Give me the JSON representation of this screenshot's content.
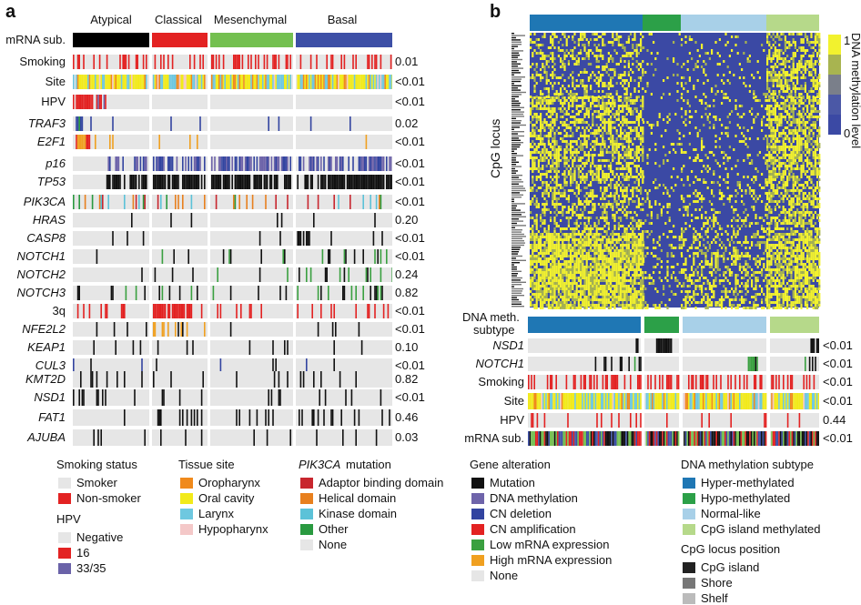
{
  "panel_a": {
    "letter": "a",
    "subtypes": [
      {
        "name": "Atypical",
        "color": "#000000"
      },
      {
        "name": "Classical",
        "color": "#e32222"
      },
      {
        "name": "Mesenchymal",
        "color": "#74c050"
      },
      {
        "name": "Basal",
        "color": "#3d4fa6"
      }
    ],
    "rows": [
      {
        "label": "mRNA sub.",
        "italic": false,
        "p": ""
      },
      {
        "label": "Smoking",
        "italic": false,
        "p": "0.01"
      },
      {
        "label": "Site",
        "italic": false,
        "p": "<0.01"
      },
      {
        "label": "HPV",
        "italic": false,
        "p": "<0.01"
      },
      {
        "label": "TRAF3",
        "italic": true,
        "p": "0.02"
      },
      {
        "label": "E2F1",
        "italic": true,
        "p": "<0.01"
      },
      {
        "label": "p16",
        "italic": true,
        "p": "<0.01"
      },
      {
        "label": "TP53",
        "italic": true,
        "p": "<0.01"
      },
      {
        "label": "PIK3CA",
        "italic": true,
        "p": "<0.01"
      },
      {
        "label": "HRAS",
        "italic": true,
        "p": "0.20"
      },
      {
        "label": "CASP8",
        "italic": true,
        "p": "<0.01"
      },
      {
        "label": "NOTCH1",
        "italic": true,
        "p": "<0.01"
      },
      {
        "label": "NOTCH2",
        "italic": true,
        "p": "0.24"
      },
      {
        "label": "NOTCH3",
        "italic": true,
        "p": "0.82"
      },
      {
        "label": "3q",
        "italic": false,
        "p": "<0.01"
      },
      {
        "label": "NFE2L2",
        "italic": true,
        "p": "<0.01"
      },
      {
        "label": "KEAP1",
        "italic": true,
        "p": "0.10"
      },
      {
        "label": "CUL3",
        "italic": true,
        "p": "<0.01"
      },
      {
        "label": "KMT2D",
        "italic": true,
        "p": "0.82"
      },
      {
        "label": "NSD1",
        "italic": true,
        "p": "<0.01"
      },
      {
        "label": "FAT1",
        "italic": true,
        "p": "0.46"
      },
      {
        "label": "AJUBA",
        "italic": true,
        "p": "0.03"
      }
    ]
  },
  "panel_b": {
    "letter": "b",
    "y_axis_label": "CpG locus",
    "colorbar_title": "DNA methylation level",
    "colorbar_ticks": [
      "1",
      "0"
    ],
    "colorbar_colors": [
      "#f2f22e",
      "#a8b450",
      "#7a7f8a",
      "#4b58a6",
      "#3b49a4"
    ],
    "top_subtype_colors": [
      "#1f77b4",
      "#2ca048",
      "#a8d0e8",
      "#b6d98a"
    ],
    "rows": [
      {
        "label": "DNA meth.",
        "label2": "subtype",
        "italic": false,
        "p": ""
      },
      {
        "label": "NSD1",
        "italic": true,
        "p": "<0.01"
      },
      {
        "label": "NOTCH1",
        "italic": true,
        "p": "<0.01"
      },
      {
        "label": "Smoking",
        "italic": false,
        "p": "<0.01"
      },
      {
        "label": "Site",
        "italic": false,
        "p": "<0.01"
      },
      {
        "label": "HPV",
        "italic": false,
        "p": "0.44"
      },
      {
        "label": "mRNA sub.",
        "italic": false,
        "p": "<0.01"
      }
    ]
  },
  "legends": {
    "smoking": {
      "title": "Smoking status",
      "items": [
        {
          "label": "Smoker",
          "color": "#e6e6e6"
        },
        {
          "label": "Non-smoker",
          "color": "#e32222"
        }
      ]
    },
    "hpv": {
      "title": "HPV",
      "items": [
        {
          "label": "Negative",
          "color": "#e6e6e6"
        },
        {
          "label": "16",
          "color": "#e32222"
        },
        {
          "label": "33/35",
          "color": "#6a62a8"
        }
      ]
    },
    "tissue": {
      "title": "Tissue site",
      "items": [
        {
          "label": "Oropharynx",
          "color": "#f08a1c"
        },
        {
          "label": "Oral cavity",
          "color": "#f2ea1a"
        },
        {
          "label": "Larynx",
          "color": "#6ec8e0"
        },
        {
          "label": "Hypopharynx",
          "color": "#f4c8c8"
        }
      ]
    },
    "pik3ca": {
      "title": "PIK3CA",
      "title_suffix": " mutation",
      "items": [
        {
          "label": "Adaptor binding domain",
          "color": "#c8262e"
        },
        {
          "label": "Helical domain",
          "color": "#e8801e"
        },
        {
          "label": "Kinase domain",
          "color": "#5cc2d8"
        },
        {
          "label": "Other",
          "color": "#2a9a40"
        },
        {
          "label": "None",
          "color": "#e6e6e6"
        }
      ]
    },
    "gene": {
      "title": "Gene alteration",
      "items": [
        {
          "label": "Mutation",
          "color": "#111111"
        },
        {
          "label": "DNA methylation",
          "color": "#6e64aa"
        },
        {
          "label": "CN deletion",
          "color": "#3244a0"
        },
        {
          "label": "CN amplification",
          "color": "#e32222"
        },
        {
          "label": "Low mRNA expression",
          "color": "#3aa040"
        },
        {
          "label": "High mRNA expression",
          "color": "#f0a020"
        },
        {
          "label": "None",
          "color": "#e6e6e6"
        }
      ]
    },
    "dnameth": {
      "title": "DNA methylation subtype",
      "items": [
        {
          "label": "Hyper-methylated",
          "color": "#1f77b4"
        },
        {
          "label": "Hypo-methylated",
          "color": "#2ca048"
        },
        {
          "label": "Normal-like",
          "color": "#a8d0e8"
        },
        {
          "label": "CpG island methylated",
          "color": "#b6d98a"
        }
      ]
    },
    "cpg": {
      "title": "CpG locus position",
      "items": [
        {
          "label": "CpG island",
          "color": "#222222"
        },
        {
          "label": "Shore",
          "color": "#777777"
        },
        {
          "label": "Shelf",
          "color": "#bbbbbb"
        }
      ]
    }
  }
}
